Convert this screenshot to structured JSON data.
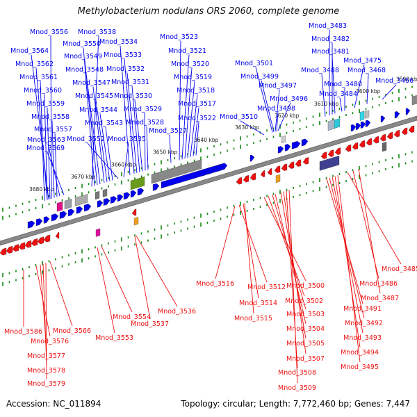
{
  "title": "Methylobacterium nodulans ORS 2060, complete genome",
  "footer": {
    "accession": "Accession: NC_011894",
    "summary": "Topology: circular; Length: 7,772,460 bp; Genes: 7,447"
  },
  "colors": {
    "forward": "#0000ee",
    "reverse": "#ee1111",
    "backbone": "#888888",
    "tick": "#118811"
  },
  "position_labels": [
    "3590 kbp",
    "3600 kbp",
    "3610 kbp",
    "3620 kbp",
    "3630 kbp",
    "3640 kbp",
    "3650 kbp",
    "3660 kbp",
    "3670 kbp",
    "3680 kbp"
  ],
  "top_genes": [
    "Mnod_3556",
    "Mnod_3564",
    "Mnod_3562",
    "Mnod_3561",
    "Mnod_3560",
    "Mnod_3559",
    "Mnod_3558",
    "Mnod_3557",
    "Mnod_3563",
    "Mnod_3569",
    "Mnod_3538",
    "Mnod_3550",
    "Mnod_3549",
    "Mnod_3548",
    "Mnod_3547",
    "Mnod_3545",
    "Mnod_3544",
    "Mnod_3543",
    "Mnod_3552",
    "Mnod_3534",
    "Mnod_3533",
    "Mnod_3532",
    "Mnod_3531",
    "Mnod_3530",
    "Mnod_3529",
    "Mnod_3528",
    "Mnod_3535",
    "Mnod_3523",
    "Mnod_3521",
    "Mnod_3520",
    "Mnod_3519",
    "Mnod_3518",
    "Mnod_3517",
    "Mnod_3522",
    "Mnod_3527",
    "Mnod_3501",
    "Mnod_3499",
    "Mnod_3497",
    "Mnod_3496",
    "Mnod_3498",
    "Mnod_3510",
    "Mnod_3483",
    "Mnod_3482",
    "Mnod_3481",
    "Mnod_3475",
    "Mnod_3488",
    "Mnod_3468",
    "Mnod_3480",
    "Mnod_3466",
    "Mnod_3484"
  ],
  "bottom_genes": [
    "Mnod_3586",
    "Mnod_3576",
    "Mnod_3566",
    "Mnod_3577",
    "Mnod_3578",
    "Mnod_3579",
    "Mnod_3554",
    "Mnod_3553",
    "Mnod_3537",
    "Mnod_3536",
    "Mnod_3516",
    "Mnod_3512",
    "Mnod_3514",
    "Mnod_3515",
    "Mnod_3500",
    "Mnod_3502",
    "Mnod_3503",
    "Mnod_3504",
    "Mnod_3505",
    "Mnod_3507",
    "Mnod_3508",
    "Mnod_3509",
    "Mnod_3485",
    "Mnod_3486",
    "Mnod_3487",
    "Mnod_3491",
    "Mnod_3492",
    "Mnod_3493",
    "Mnod_3494",
    "Mnod_3495"
  ]
}
